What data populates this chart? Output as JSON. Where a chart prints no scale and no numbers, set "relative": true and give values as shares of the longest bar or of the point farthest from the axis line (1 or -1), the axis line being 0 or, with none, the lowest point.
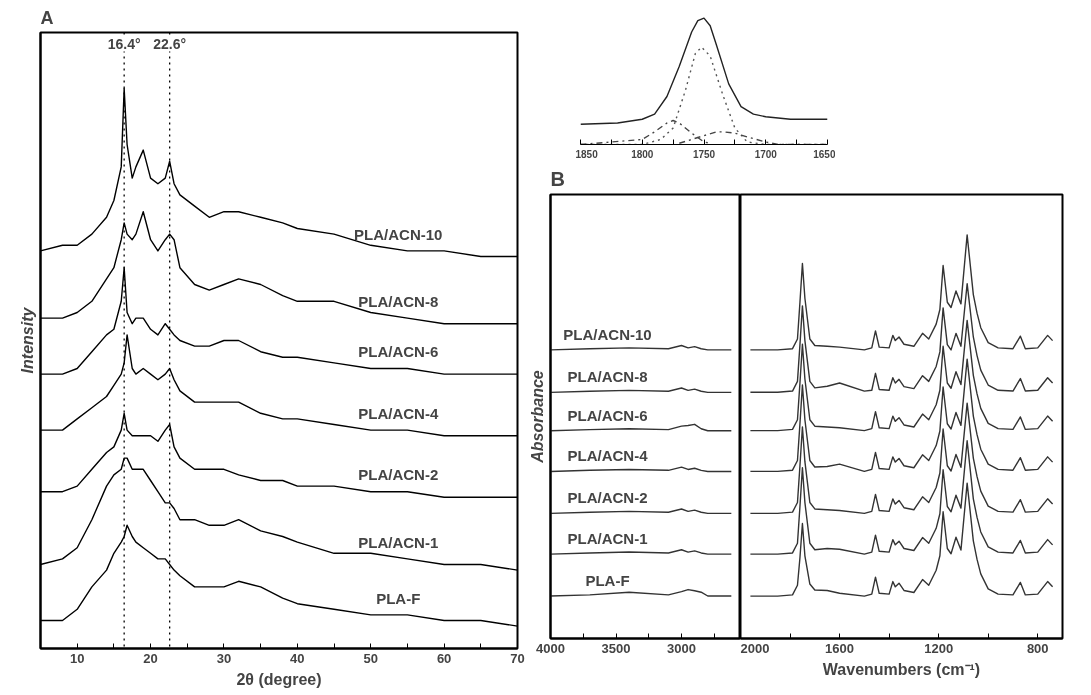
{
  "chart_data": [
    {
      "type": "line",
      "title": "A",
      "xlabel": "2θ (degree)",
      "ylabel": "Intensity",
      "relative": true,
      "xlim": [
        5,
        70
      ],
      "xticks": [
        {
          "value": 5,
          "label": null
        },
        10,
        {
          "value": 15,
          "label": null
        },
        20,
        {
          "value": 25,
          "label": null
        },
        30,
        {
          "value": 35,
          "label": null
        },
        40,
        {
          "value": 45,
          "label": null
        },
        50,
        {
          "value": 55,
          "label": null
        },
        60,
        {
          "value": 65,
          "label": null
        },
        70
      ],
      "tick_labels": "x",
      "x": [
        5,
        8,
        10,
        12,
        14,
        15,
        16,
        16.4,
        16.8,
        17.5,
        18,
        19,
        20,
        21,
        22,
        22.6,
        23.2,
        24,
        26,
        28,
        30,
        32,
        35,
        38,
        40,
        45,
        50,
        55,
        60,
        65,
        70
      ],
      "ref_lines": [
        {
          "axis": "x",
          "value": 16.4,
          "label": "16.4°",
          "line_style": "dotted"
        },
        {
          "axis": "x",
          "value": 22.6,
          "label": "22.6°",
          "line_style": "dotted"
        }
      ],
      "series": [
        {
          "name": "PLA/ACN-10",
          "color": "#000000",
          "values": [
            0.71,
            0.72,
            0.72,
            0.74,
            0.77,
            0.8,
            0.86,
            1.0,
            0.9,
            0.84,
            0.86,
            0.89,
            0.84,
            0.83,
            0.84,
            0.87,
            0.83,
            0.81,
            0.79,
            0.77,
            0.78,
            0.78,
            0.77,
            0.76,
            0.75,
            0.74,
            0.72,
            0.71,
            0.71,
            0.7,
            0.7
          ]
        },
        {
          "name": "PLA/ACN-8",
          "color": "#000000",
          "values": [
            0.59,
            0.59,
            0.6,
            0.62,
            0.66,
            0.68,
            0.73,
            0.76,
            0.74,
            0.73,
            0.74,
            0.78,
            0.73,
            0.71,
            0.73,
            0.74,
            0.73,
            0.68,
            0.65,
            0.64,
            0.65,
            0.66,
            0.65,
            0.63,
            0.62,
            0.62,
            0.6,
            0.59,
            0.58,
            0.58,
            0.58
          ]
        },
        {
          "name": "PLA/ACN-6",
          "color": "#000000",
          "values": [
            0.49,
            0.49,
            0.5,
            0.53,
            0.56,
            0.57,
            0.62,
            0.68,
            0.6,
            0.58,
            0.59,
            0.59,
            0.57,
            0.56,
            0.58,
            0.57,
            0.56,
            0.55,
            0.54,
            0.54,
            0.55,
            0.55,
            0.53,
            0.52,
            0.52,
            0.51,
            0.5,
            0.5,
            0.49,
            0.49,
            0.49
          ]
        },
        {
          "name": "PLA/ACN-4",
          "color": "#000000",
          "values": [
            0.39,
            0.39,
            0.41,
            0.43,
            0.45,
            0.47,
            0.49,
            0.51,
            0.56,
            0.5,
            0.49,
            0.5,
            0.49,
            0.48,
            0.49,
            0.5,
            0.48,
            0.46,
            0.44,
            0.44,
            0.44,
            0.44,
            0.42,
            0.41,
            0.41,
            0.4,
            0.39,
            0.39,
            0.38,
            0.38,
            0.38
          ]
        },
        {
          "name": "PLA/ACN-2",
          "color": "#000000",
          "values": [
            0.28,
            0.28,
            0.29,
            0.32,
            0.35,
            0.36,
            0.39,
            0.42,
            0.39,
            0.38,
            0.38,
            0.38,
            0.38,
            0.37,
            0.39,
            0.4,
            0.36,
            0.34,
            0.32,
            0.32,
            0.32,
            0.31,
            0.3,
            0.3,
            0.29,
            0.29,
            0.28,
            0.28,
            0.27,
            0.27,
            0.27
          ]
        },
        {
          "name": "PLA/ACN-1",
          "color": "#000000",
          "values": [
            0.15,
            0.16,
            0.18,
            0.23,
            0.29,
            0.31,
            0.32,
            0.34,
            0.34,
            0.32,
            0.32,
            0.32,
            0.3,
            0.28,
            0.26,
            0.26,
            0.25,
            0.23,
            0.23,
            0.22,
            0.22,
            0.23,
            0.21,
            0.2,
            0.19,
            0.17,
            0.17,
            0.16,
            0.15,
            0.15,
            0.14
          ]
        },
        {
          "name": "PLA-F",
          "color": "#000000",
          "values": [
            0.05,
            0.05,
            0.07,
            0.11,
            0.14,
            0.17,
            0.19,
            0.2,
            0.22,
            0.2,
            0.19,
            0.18,
            0.17,
            0.16,
            0.16,
            0.15,
            0.14,
            0.13,
            0.11,
            0.11,
            0.11,
            0.12,
            0.11,
            0.09,
            0.08,
            0.07,
            0.06,
            0.06,
            0.05,
            0.05,
            0.04
          ]
        }
      ]
    },
    {
      "type": "line",
      "relative": true,
      "xlim": [
        1850,
        1650
      ],
      "xticks": [
        1850,
        {
          "value": 1825,
          "label": null
        },
        1800,
        {
          "value": 1775,
          "label": null
        },
        1750,
        {
          "value": 1725,
          "label": null
        },
        1700,
        {
          "value": 1675,
          "label": null
        },
        1650
      ],
      "tick_labels": "x",
      "series": [
        {
          "color": "#222222",
          "line_style": "solid",
          "x": [
            1850,
            1820,
            1800,
            1790,
            1780,
            1770,
            1760,
            1755,
            1750,
            1745,
            1740,
            1730,
            1720,
            1710,
            1700,
            1680,
            1650
          ],
          "values": [
            0.16,
            0.17,
            0.2,
            0.24,
            0.38,
            0.62,
            0.89,
            0.98,
            1.0,
            0.94,
            0.79,
            0.48,
            0.3,
            0.24,
            0.22,
            0.2,
            0.2
          ]
        },
        {
          "color": "#555555",
          "line_style": "dotted",
          "x": [
            1850,
            1800,
            1785,
            1775,
            1765,
            1757,
            1752,
            1745,
            1735,
            1725,
            1715,
            1700,
            1650
          ],
          "values": [
            0,
            0,
            0.04,
            0.13,
            0.43,
            0.72,
            0.77,
            0.7,
            0.4,
            0.13,
            0.02,
            0,
            0
          ]
        },
        {
          "color": "#444444",
          "line_style": "dashdot",
          "x": [
            1850,
            1800,
            1790,
            1780,
            1775,
            1770,
            1760,
            1750,
            1745
          ],
          "values": [
            0,
            0.04,
            0.1,
            0.17,
            0.19,
            0.17,
            0.09,
            0.02,
            0.01
          ]
        },
        {
          "color": "#444444",
          "line_style": "dashdot",
          "x": [
            1770,
            1760,
            1750,
            1740,
            1735,
            1725,
            1715,
            1700,
            1690,
            1650
          ],
          "values": [
            0.01,
            0.04,
            0.07,
            0.1,
            0.1,
            0.09,
            0.06,
            0.02,
            0,
            0
          ]
        }
      ]
    },
    {
      "type": "line",
      "title": "B",
      "ylabel": "Absorbance",
      "relative": true,
      "xlim": [
        4000,
        2550
      ],
      "xticks": [
        4000,
        {
          "value": 3750,
          "label": null
        },
        3500,
        {
          "value": 3250,
          "label": null
        },
        3000,
        {
          "value": 2750,
          "label": null
        }
      ],
      "tick_labels": "x",
      "x": [
        4000,
        3700,
        3400,
        3100,
        3000,
        2950,
        2900,
        2850,
        2800,
        2620
      ],
      "series": [
        {
          "name": "PLA/ACN-10",
          "color": "#333333",
          "values": [
            0.985,
            0.989,
            0.992,
            0.989,
            1.0,
            0.992,
            0.996,
            0.989,
            0.985,
            0.985
          ]
        },
        {
          "name": "PLA/ACN-8",
          "color": "#333333",
          "values": [
            0.84,
            0.844,
            0.847,
            0.844,
            0.855,
            0.847,
            0.851,
            0.844,
            0.84,
            0.84
          ]
        },
        {
          "name": "PLA/ACN-6",
          "color": "#333333",
          "values": [
            0.709,
            0.713,
            0.716,
            0.713,
            0.725,
            0.727,
            0.731,
            0.716,
            0.709,
            0.709
          ]
        },
        {
          "name": "PLA/ACN-4",
          "color": "#333333",
          "values": [
            0.57,
            0.574,
            0.577,
            0.574,
            0.585,
            0.577,
            0.581,
            0.574,
            0.57,
            0.57
          ]
        },
        {
          "name": "PLA/ACN-2",
          "color": "#333333",
          "values": [
            0.427,
            0.431,
            0.434,
            0.431,
            0.442,
            0.434,
            0.438,
            0.431,
            0.427,
            0.427
          ]
        },
        {
          "name": "PLA/ACN-1",
          "color": "#333333",
          "values": [
            0.288,
            0.292,
            0.295,
            0.292,
            0.303,
            0.295,
            0.299,
            0.292,
            0.288,
            0.288
          ]
        },
        {
          "name": "PLA-F",
          "color": "#333333",
          "values": [
            0.145,
            0.149,
            0.158,
            0.149,
            0.16,
            0.167,
            0.163,
            0.158,
            0.145,
            0.145
          ]
        }
      ]
    },
    {
      "type": "line",
      "xlabel": "Wavenumbers (cm⁻¹)",
      "relative": true,
      "xlim": [
        2000,
        700
      ],
      "xticks": [
        2000,
        {
          "value": 1800,
          "label": null
        },
        1600,
        {
          "value": 1400,
          "label": null
        },
        1200,
        {
          "value": 1000,
          "label": null
        },
        800
      ],
      "tick_labels": "x",
      "x": [
        1960,
        1850,
        1790,
        1770,
        1760,
        1750,
        1740,
        1720,
        1700,
        1650,
        1600,
        1500,
        1470,
        1455,
        1440,
        1400,
        1385,
        1375,
        1360,
        1340,
        1300,
        1265,
        1240,
        1210,
        1195,
        1182,
        1165,
        1150,
        1130,
        1110,
        1085,
        1060,
        1045,
        1030,
        1000,
        960,
        900,
        870,
        850,
        800,
        760,
        740
      ],
      "series": [
        {
          "color": "#333333",
          "values": [
            0.715,
            0.715,
            0.718,
            0.742,
            0.833,
            0.929,
            0.843,
            0.742,
            0.726,
            0.724,
            0.722,
            0.715,
            0.72,
            0.762,
            0.722,
            0.72,
            0.751,
            0.738,
            0.747,
            0.729,
            0.724,
            0.756,
            0.742,
            0.779,
            0.815,
            0.924,
            0.833,
            0.82,
            0.861,
            0.829,
            1.0,
            0.852,
            0.806,
            0.77,
            0.733,
            0.72,
            0.718,
            0.749,
            0.718,
            0.72,
            0.751,
            0.738
          ]
        },
        {
          "color": "#333333",
          "values": [
            0.61,
            0.61,
            0.613,
            0.637,
            0.728,
            0.824,
            0.738,
            0.637,
            0.621,
            0.625,
            0.633,
            0.613,
            0.615,
            0.657,
            0.617,
            0.615,
            0.646,
            0.633,
            0.642,
            0.624,
            0.619,
            0.651,
            0.637,
            0.674,
            0.71,
            0.819,
            0.728,
            0.715,
            0.756,
            0.724,
            0.879,
            0.747,
            0.701,
            0.665,
            0.628,
            0.615,
            0.613,
            0.644,
            0.613,
            0.615,
            0.646,
            0.633
          ]
        },
        {
          "color": "#333333",
          "values": [
            0.515,
            0.515,
            0.518,
            0.542,
            0.633,
            0.729,
            0.643,
            0.542,
            0.526,
            0.524,
            0.522,
            0.515,
            0.52,
            0.562,
            0.522,
            0.52,
            0.551,
            0.538,
            0.547,
            0.529,
            0.524,
            0.556,
            0.542,
            0.579,
            0.615,
            0.724,
            0.633,
            0.62,
            0.661,
            0.629,
            0.788,
            0.652,
            0.606,
            0.57,
            0.533,
            0.52,
            0.518,
            0.549,
            0.518,
            0.52,
            0.551,
            0.538
          ]
        },
        {
          "color": "#333333",
          "values": [
            0.414,
            0.414,
            0.417,
            0.441,
            0.532,
            0.628,
            0.542,
            0.441,
            0.425,
            0.426,
            0.432,
            0.414,
            0.419,
            0.461,
            0.421,
            0.419,
            0.45,
            0.437,
            0.446,
            0.428,
            0.423,
            0.455,
            0.441,
            0.478,
            0.514,
            0.623,
            0.532,
            0.519,
            0.56,
            0.528,
            0.692,
            0.551,
            0.505,
            0.469,
            0.432,
            0.419,
            0.417,
            0.448,
            0.417,
            0.419,
            0.45,
            0.437
          ]
        },
        {
          "color": "#333333",
          "values": [
            0.31,
            0.31,
            0.313,
            0.337,
            0.428,
            0.524,
            0.438,
            0.337,
            0.321,
            0.319,
            0.317,
            0.31,
            0.315,
            0.357,
            0.317,
            0.315,
            0.346,
            0.333,
            0.342,
            0.324,
            0.319,
            0.351,
            0.337,
            0.374,
            0.41,
            0.519,
            0.428,
            0.415,
            0.456,
            0.424,
            0.583,
            0.447,
            0.401,
            0.365,
            0.328,
            0.315,
            0.313,
            0.344,
            0.313,
            0.315,
            0.346,
            0.333
          ]
        },
        {
          "color": "#333333",
          "values": [
            0.209,
            0.209,
            0.212,
            0.236,
            0.327,
            0.423,
            0.337,
            0.236,
            0.22,
            0.223,
            0.221,
            0.209,
            0.214,
            0.256,
            0.216,
            0.214,
            0.245,
            0.232,
            0.241,
            0.223,
            0.218,
            0.25,
            0.236,
            0.273,
            0.309,
            0.418,
            0.327,
            0.314,
            0.355,
            0.323,
            0.49,
            0.346,
            0.3,
            0.264,
            0.227,
            0.214,
            0.212,
            0.243,
            0.212,
            0.214,
            0.245,
            0.232
          ]
        },
        {
          "color": "#333333",
          "values": [
            0.105,
            0.105,
            0.108,
            0.132,
            0.2,
            0.285,
            0.205,
            0.135,
            0.12,
            0.119,
            0.112,
            0.105,
            0.11,
            0.152,
            0.112,
            0.11,
            0.141,
            0.128,
            0.137,
            0.119,
            0.114,
            0.146,
            0.132,
            0.169,
            0.205,
            0.314,
            0.223,
            0.21,
            0.251,
            0.219,
            0.385,
            0.242,
            0.196,
            0.16,
            0.123,
            0.11,
            0.108,
            0.139,
            0.108,
            0.11,
            0.141,
            0.128
          ]
        }
      ]
    }
  ]
}
